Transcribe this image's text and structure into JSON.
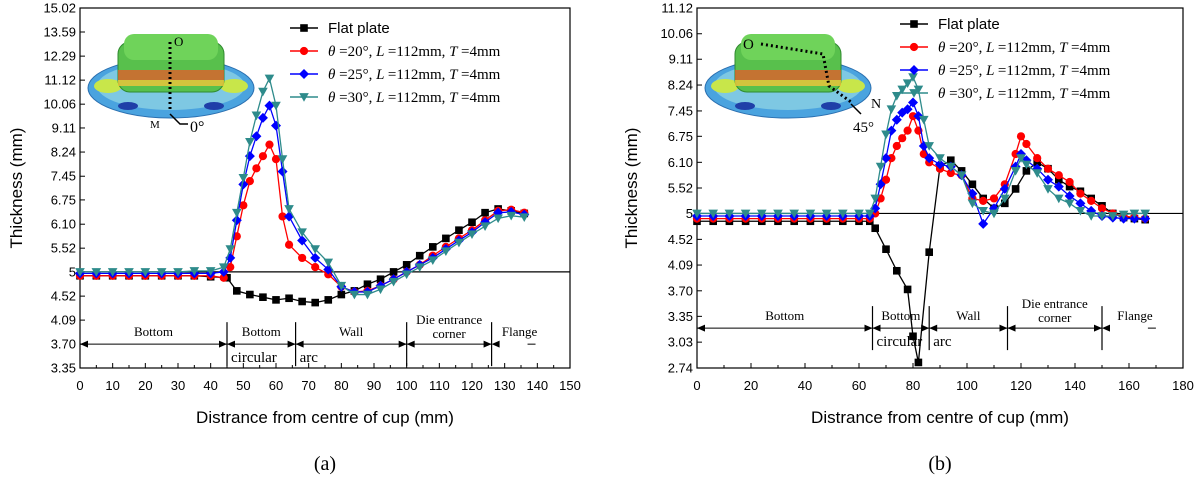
{
  "colors": {
    "flat": "#000000",
    "theta20": "#ff0000",
    "theta25": "#0000ff",
    "theta30": "#2e8b8b",
    "axis": "#000000"
  },
  "chart_data": [
    {
      "id": "a",
      "type": "line",
      "panel_label": "(a)",
      "xlabel": "Distrance from centre of cup (mm)",
      "ylabel": "Thickness (mm)",
      "xlim": [
        0,
        150
      ],
      "ylim": [
        3.35,
        15.02
      ],
      "xticks": [
        0,
        10,
        20,
        30,
        40,
        50,
        60,
        70,
        80,
        90,
        100,
        110,
        120,
        130,
        140,
        150
      ],
      "yticks": [
        "3.35",
        "3.70",
        "4.09",
        "4.52",
        "5",
        "5.52",
        "6.10",
        "6.75",
        "7.45",
        "8.24",
        "9.11",
        "10.06",
        "11.12",
        "12.29",
        "13.59",
        "15.02"
      ],
      "reference_line": 5,
      "legend": {
        "flat": "Flat plate",
        "theta20": "θ =20°,  L =112mm,  T =4mm",
        "theta25": "θ =25°,  L =112mm,  T =4mm",
        "theta30": "θ =30°,  L =112mm,  T =4mm"
      },
      "regions": [
        {
          "label": "Bottom",
          "from": 0,
          "to": 45
        },
        {
          "label": "Bottom",
          "from": 45,
          "to": 66
        },
        {
          "label": "Wall",
          "from": 66,
          "to": 100
        },
        {
          "label": "Die entrance",
          "label2": "corner",
          "from": 100,
          "to": 126
        },
        {
          "label": "Flange",
          "from": 126,
          "to": 137
        }
      ],
      "region_sub_labels": [
        "circular arc"
      ],
      "inset": {
        "point_start": "O",
        "point_end": "M",
        "angle": "0°"
      },
      "series": [
        {
          "key": "flat",
          "name": "Flat plate",
          "marker": "square",
          "x": [
            0,
            5,
            10,
            15,
            20,
            25,
            30,
            35,
            40,
            45,
            48,
            52,
            56,
            60,
            64,
            68,
            72,
            76,
            80,
            84,
            88,
            92,
            96,
            100,
            104,
            108,
            112,
            116,
            120,
            124,
            128,
            132,
            136
          ],
          "y": [
            4.92,
            4.92,
            4.92,
            4.92,
            4.92,
            4.92,
            4.92,
            4.92,
            4.9,
            4.88,
            4.62,
            4.55,
            4.5,
            4.45,
            4.48,
            4.42,
            4.4,
            4.45,
            4.55,
            4.62,
            4.75,
            4.85,
            5.0,
            5.15,
            5.35,
            5.55,
            5.75,
            5.95,
            6.15,
            6.4,
            6.5,
            6.45,
            6.38
          ]
        },
        {
          "key": "theta20",
          "name": "θ =20°, L =112mm, T =4mm",
          "marker": "circle",
          "x": [
            0,
            5,
            10,
            15,
            20,
            25,
            30,
            35,
            40,
            44,
            46,
            48,
            50,
            52,
            54,
            56,
            58,
            60,
            62,
            64,
            68,
            72,
            76,
            80,
            84,
            88,
            92,
            96,
            100,
            104,
            108,
            112,
            116,
            120,
            124,
            128,
            132,
            136
          ],
          "y": [
            4.92,
            4.92,
            4.92,
            4.92,
            4.92,
            4.92,
            4.92,
            4.92,
            4.92,
            4.88,
            5.1,
            5.8,
            6.6,
            7.3,
            7.7,
            8.1,
            8.5,
            8.0,
            6.3,
            5.6,
            5.3,
            5.1,
            4.95,
            4.7,
            4.6,
            4.62,
            4.72,
            4.85,
            5.0,
            5.15,
            5.35,
            5.55,
            5.75,
            5.95,
            6.2,
            6.45,
            6.48,
            6.4
          ]
        },
        {
          "key": "theta25",
          "name": "θ =25°, L =112mm, T =4mm",
          "marker": "diamond",
          "x": [
            0,
            5,
            10,
            15,
            20,
            25,
            30,
            35,
            40,
            44,
            46,
            48,
            50,
            52,
            54,
            56,
            58,
            60,
            62,
            64,
            68,
            72,
            76,
            80,
            84,
            88,
            92,
            96,
            100,
            104,
            108,
            112,
            116,
            120,
            124,
            128,
            132,
            136
          ],
          "y": [
            4.97,
            4.97,
            4.97,
            4.97,
            4.97,
            4.97,
            4.97,
            4.97,
            4.97,
            5.0,
            5.3,
            6.2,
            7.2,
            8.1,
            8.8,
            9.5,
            10.0,
            9.2,
            7.6,
            6.3,
            5.7,
            5.3,
            5.05,
            4.7,
            4.6,
            4.6,
            4.72,
            4.85,
            5.0,
            5.15,
            5.3,
            5.5,
            5.7,
            5.9,
            6.15,
            6.4,
            6.42,
            6.35
          ]
        },
        {
          "key": "theta30",
          "name": "θ =30°, L =112mm, T =4mm",
          "marker": "triangle-down",
          "x": [
            0,
            5,
            10,
            15,
            20,
            25,
            30,
            35,
            40,
            44,
            46,
            48,
            50,
            52,
            54,
            56,
            58,
            60,
            62,
            64,
            68,
            72,
            76,
            80,
            84,
            88,
            92,
            96,
            100,
            104,
            108,
            112,
            116,
            120,
            124,
            128,
            132,
            136
          ],
          "y": [
            5.0,
            5.0,
            5.0,
            5.0,
            5.0,
            5.0,
            5.0,
            5.02,
            5.02,
            5.1,
            5.5,
            6.4,
            7.4,
            8.6,
            9.6,
            10.6,
            11.2,
            10.0,
            8.0,
            6.5,
            5.9,
            5.5,
            5.2,
            4.72,
            4.55,
            4.55,
            4.65,
            4.8,
            4.95,
            5.1,
            5.25,
            5.45,
            5.65,
            5.85,
            6.05,
            6.25,
            6.32,
            6.28
          ]
        }
      ]
    },
    {
      "id": "b",
      "type": "line",
      "panel_label": "(b)",
      "xlabel": "Distrance from centre of cup (mm)",
      "ylabel": "Thickness (mm)",
      "xlim": [
        0,
        180
      ],
      "ylim": [
        2.74,
        11.12
      ],
      "xticks": [
        0,
        20,
        40,
        60,
        80,
        100,
        120,
        140,
        160,
        180
      ],
      "yticks": [
        "2.74",
        "3.03",
        "3.35",
        "3.70",
        "4.09",
        "4.52",
        "5",
        "5.52",
        "6.10",
        "6.75",
        "7.45",
        "8.24",
        "9.11",
        "10.06",
        "11.12"
      ],
      "reference_line": 5,
      "legend": {
        "flat": "Flat plate",
        "theta20": "θ =20°,  L =112mm,  T =4mm",
        "theta25": "θ =25°,  L =112mm,  T =4mm",
        "theta30": "θ =30°,  L =112mm,  T =4mm"
      },
      "regions": [
        {
          "label": "Bottom",
          "from": 0,
          "to": 65
        },
        {
          "label": "Bottom",
          "from": 65,
          "to": 86
        },
        {
          "label": "Wall",
          "from": 86,
          "to": 115
        },
        {
          "label": "Die entrance",
          "label2": "corner",
          "from": 115,
          "to": 150
        },
        {
          "label": "Flange",
          "from": 150,
          "to": 167
        }
      ],
      "region_sub_labels": [
        "circular arc"
      ],
      "inset": {
        "point_start": "O",
        "point_end": "N",
        "angle": "45°"
      },
      "series": [
        {
          "key": "flat",
          "name": "Flat plate",
          "marker": "square",
          "x": [
            0,
            6,
            12,
            18,
            24,
            30,
            36,
            42,
            48,
            54,
            60,
            64,
            66,
            70,
            74,
            78,
            80,
            82,
            86,
            90,
            94,
            98,
            102,
            106,
            110,
            114,
            118,
            122,
            126,
            130,
            134,
            138,
            142,
            146,
            150,
            154,
            158,
            162,
            166
          ],
          "y": [
            4.85,
            4.85,
            4.85,
            4.85,
            4.85,
            4.85,
            4.85,
            4.85,
            4.85,
            4.85,
            4.85,
            4.85,
            4.72,
            4.35,
            4.0,
            3.72,
            3.1,
            2.8,
            4.3,
            6.0,
            6.15,
            5.9,
            5.6,
            5.3,
            5.1,
            5.2,
            5.5,
            5.9,
            6.1,
            5.95,
            5.7,
            5.55,
            5.45,
            5.3,
            5.15,
            5.0,
            4.92,
            4.9,
            4.88
          ]
        },
        {
          "key": "theta20",
          "name": "θ =20°, L =112mm, T =4mm",
          "marker": "circle",
          "x": [
            0,
            6,
            12,
            18,
            24,
            30,
            36,
            42,
            48,
            54,
            60,
            64,
            66,
            68,
            70,
            72,
            74,
            76,
            78,
            80,
            82,
            84,
            86,
            90,
            94,
            98,
            102,
            106,
            110,
            114,
            118,
            120,
            122,
            126,
            130,
            134,
            138,
            142,
            146,
            150,
            154,
            158,
            162,
            166
          ],
          "y": [
            4.9,
            4.9,
            4.9,
            4.9,
            4.9,
            4.9,
            4.9,
            4.9,
            4.9,
            4.9,
            4.9,
            4.9,
            5.0,
            5.3,
            5.7,
            6.2,
            6.5,
            6.7,
            6.9,
            7.3,
            6.9,
            6.3,
            6.1,
            5.95,
            5.85,
            5.8,
            5.3,
            5.25,
            5.3,
            5.6,
            6.3,
            6.75,
            6.55,
            6.2,
            5.95,
            5.8,
            5.65,
            5.4,
            5.25,
            5.1,
            5.0,
            4.95,
            4.92,
            4.9
          ]
        },
        {
          "key": "theta25",
          "name": "θ =25°, L =112mm, T =4mm",
          "marker": "diamond",
          "x": [
            0,
            6,
            12,
            18,
            24,
            30,
            36,
            42,
            48,
            54,
            60,
            64,
            66,
            68,
            70,
            72,
            74,
            76,
            78,
            80,
            82,
            84,
            86,
            90,
            94,
            98,
            102,
            106,
            110,
            114,
            118,
            120,
            122,
            126,
            130,
            134,
            138,
            142,
            146,
            150,
            154,
            158,
            162,
            166
          ],
          "y": [
            4.95,
            4.95,
            4.95,
            4.95,
            4.95,
            4.95,
            4.95,
            4.95,
            4.95,
            4.95,
            4.95,
            4.95,
            5.1,
            5.6,
            6.2,
            6.9,
            7.2,
            7.4,
            7.5,
            7.7,
            7.3,
            6.5,
            6.2,
            6.05,
            6.0,
            5.8,
            5.4,
            4.8,
            5.1,
            5.5,
            6.0,
            6.3,
            6.15,
            5.95,
            5.7,
            5.55,
            5.35,
            5.2,
            5.05,
            4.95,
            4.92,
            4.9,
            4.9,
            4.9
          ]
        },
        {
          "key": "theta30",
          "name": "θ =30°, L =112mm, T =4mm",
          "marker": "triangle-down",
          "x": [
            0,
            6,
            12,
            18,
            24,
            30,
            36,
            42,
            48,
            54,
            60,
            64,
            66,
            68,
            70,
            72,
            74,
            76,
            78,
            80,
            82,
            84,
            86,
            90,
            94,
            98,
            102,
            106,
            110,
            114,
            118,
            120,
            122,
            126,
            130,
            134,
            138,
            142,
            146,
            150,
            154,
            158,
            162,
            166
          ],
          "y": [
            5.0,
            5.0,
            5.0,
            5.0,
            5.0,
            5.0,
            5.0,
            5.0,
            5.0,
            5.0,
            5.0,
            5.0,
            5.3,
            6.0,
            6.8,
            7.5,
            7.9,
            8.1,
            8.3,
            8.5,
            8.1,
            7.2,
            6.5,
            6.2,
            6.0,
            5.8,
            5.2,
            5.05,
            5.0,
            5.3,
            5.9,
            6.2,
            6.05,
            5.85,
            5.5,
            5.3,
            5.2,
            5.05,
            4.95,
            4.95,
            4.95,
            4.98,
            5.0,
            5.0
          ]
        }
      ]
    }
  ]
}
